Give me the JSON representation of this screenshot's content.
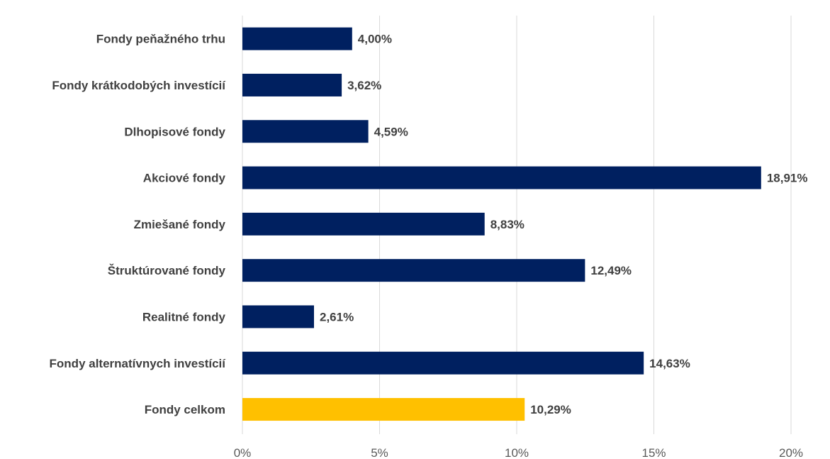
{
  "chart_data": {
    "type": "bar",
    "orientation": "horizontal",
    "categories": [
      "Fondy peňažného trhu",
      "Fondy krátkodobých investícií",
      "Dlhopisové fondy",
      "Akciové fondy",
      "Zmiešané fondy",
      "Štruktúrované fondy",
      "Realitné fondy",
      "Fondy alternatívnych investícií",
      "Fondy celkom"
    ],
    "values": [
      4.0,
      3.62,
      4.59,
      18.91,
      8.83,
      12.49,
      2.61,
      14.63,
      10.29
    ],
    "value_labels": [
      "4,00%",
      "3,62%",
      "4,59%",
      "18,91%",
      "8,83%",
      "12,49%",
      "2,61%",
      "14,63%",
      "10,29%"
    ],
    "xlim": [
      0,
      20
    ],
    "xticks": [
      0,
      5,
      10,
      15,
      20
    ],
    "xtick_labels": [
      "0%",
      "5%",
      "10%",
      "15%",
      "20%"
    ],
    "grid": "vertical",
    "legend": "none",
    "colors": {
      "bar": "#002060",
      "highlight": "#FFC000",
      "highlight_category": "Fondy celkom"
    }
  }
}
